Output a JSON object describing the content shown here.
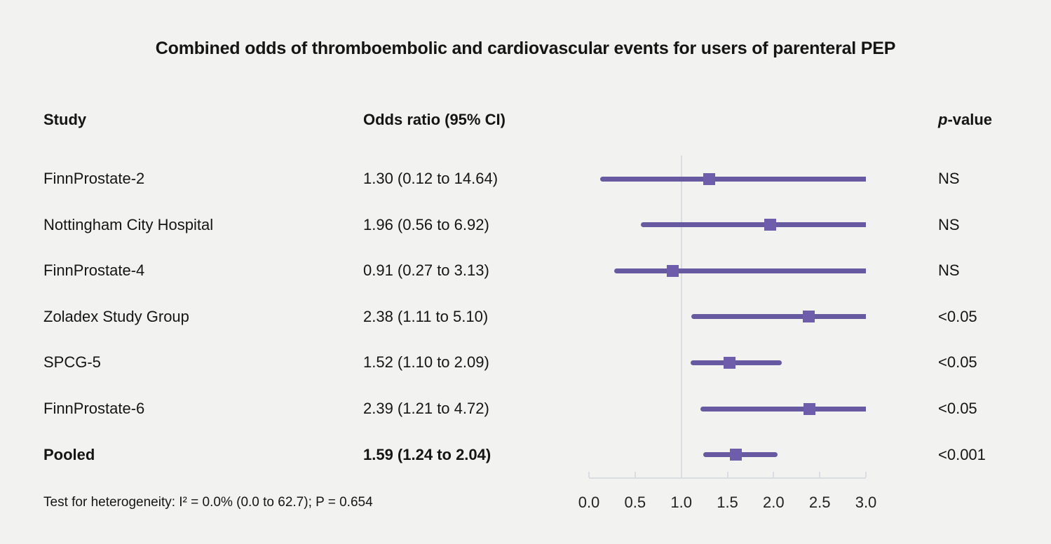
{
  "title": "Combined odds of thromboembolic and cardiovascular events for users of parenteral PEP",
  "columns": {
    "study": "Study",
    "odds_ratio": "Odds ratio (95% CI)",
    "pvalue_italic": "p",
    "pvalue_rest": "-value"
  },
  "footnote": "Test for heterogeneity: I² = 0.0% (0.0 to 62.7); P = 0.654",
  "colors": {
    "background": "#f2f2f0",
    "text": "#151515",
    "line": "#675aa1",
    "marker": "#6e5dab",
    "refline": "#d9dde1"
  },
  "chart_data": {
    "type": "forest",
    "title": "Combined odds of thromboembolic and cardiovascular events for users of parenteral PEP",
    "xlabel": "",
    "xlim": [
      0,
      3
    ],
    "x_tick_labels": [
      "0.0",
      "0.5",
      "1.0",
      "1.5",
      "2.0",
      "2.5",
      "3.0"
    ],
    "ref_line_x": 1.0,
    "grid": false,
    "legend": false,
    "rows": [
      {
        "study": "FinnProstate-2",
        "or": 1.3,
        "ci_low": 0.12,
        "ci_high": 14.64,
        "or_text": "1.30 (0.12 to 14.64)",
        "p_value": "NS",
        "emphasis": false
      },
      {
        "study": "Nottingham City Hospital",
        "or": 1.96,
        "ci_low": 0.56,
        "ci_high": 6.92,
        "or_text": "1.96 (0.56 to 6.92)",
        "p_value": "NS",
        "emphasis": false
      },
      {
        "study": "FinnProstate-4",
        "or": 0.91,
        "ci_low": 0.27,
        "ci_high": 3.13,
        "or_text": "0.91 (0.27 to 3.13)",
        "p_value": "NS",
        "emphasis": false
      },
      {
        "study": "Zoladex Study Group",
        "or": 2.38,
        "ci_low": 1.11,
        "ci_high": 5.1,
        "or_text": "2.38 (1.11 to 5.10)",
        "p_value": "<0.05",
        "emphasis": false
      },
      {
        "study": "SPCG-5",
        "or": 1.52,
        "ci_low": 1.1,
        "ci_high": 2.09,
        "or_text": "1.52 (1.10 to 2.09)",
        "p_value": "<0.05",
        "emphasis": false
      },
      {
        "study": "FinnProstate-6",
        "or": 2.39,
        "ci_low": 1.21,
        "ci_high": 4.72,
        "or_text": "2.39 (1.21 to 4.72)",
        "p_value": "<0.05",
        "emphasis": false
      },
      {
        "study": "Pooled",
        "or": 1.59,
        "ci_low": 1.24,
        "ci_high": 2.04,
        "or_text": "1.59 (1.24 to 2.04)",
        "p_value": "<0.001",
        "emphasis": true
      }
    ]
  }
}
